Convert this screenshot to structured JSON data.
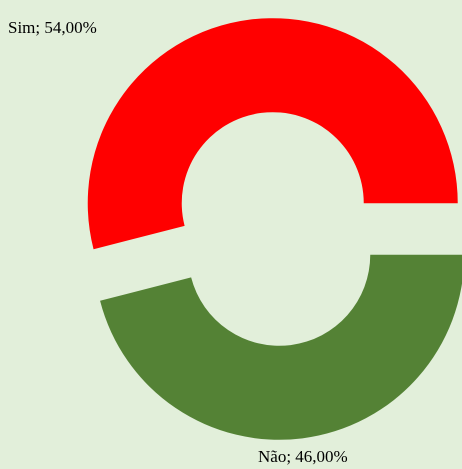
{
  "chart_data": {
    "type": "donut",
    "values": [
      54,
      46
    ],
    "value_labels": [
      "Sim; 54,00%",
      "Não; 46,00%"
    ],
    "colors": [
      "#ff0000",
      "#548235"
    ]
  }
}
